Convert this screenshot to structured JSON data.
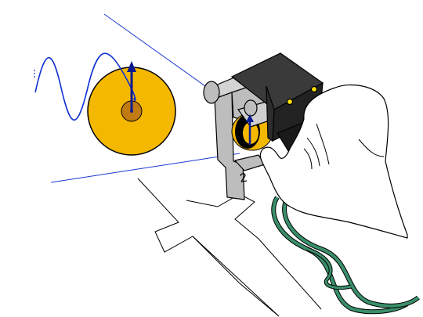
{
  "diagram": {
    "stator_number": "2",
    "colors": {
      "disk": "#f5b800",
      "hub": "#c27a12",
      "wave": "#1030d0",
      "vector": "#0a1a90",
      "guide_line": "#1838d0",
      "frame": "#bdbdbd",
      "motor_body": "#222222",
      "indicator_led": "#ffe000",
      "cable": "#3a8f6a",
      "hand_outline": "#000000"
    },
    "icons": [
      "sine-wave",
      "rotor-disk",
      "position-arrow",
      "motor-housing",
      "hand",
      "cable"
    ]
  }
}
